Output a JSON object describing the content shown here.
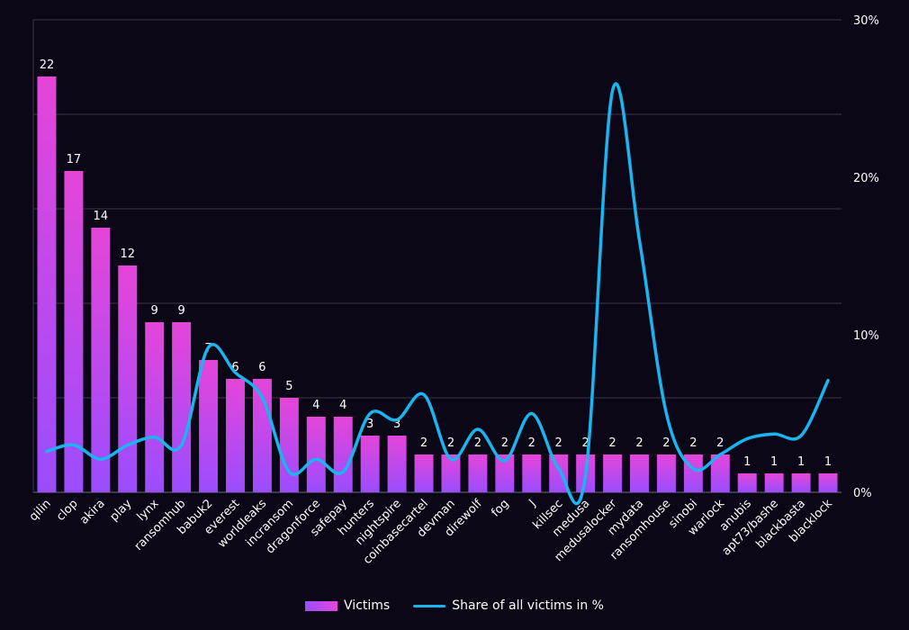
{
  "chart_data": {
    "type": "bar",
    "categories": [
      "qilin",
      "clop",
      "akira",
      "play",
      "lynx",
      "ransomhub",
      "babuk2",
      "everest",
      "worldleaks",
      "incransom",
      "dragonforce",
      "safepay",
      "hunters",
      "nightspire",
      "coinbasecartel",
      "devman",
      "direwolf",
      "fog",
      "J",
      "killsec",
      "medusa",
      "medusalocker",
      "mydata",
      "ransomhouse",
      "sinobi",
      "warlock",
      "anubis",
      "apt73/bashe",
      "blackbasta",
      "blacklock"
    ],
    "series": [
      {
        "name": "Victims",
        "type": "bar",
        "axis": "left",
        "values": [
          22,
          17,
          14,
          12,
          9,
          9,
          7,
          6,
          6,
          5,
          4,
          4,
          3,
          3,
          2,
          2,
          2,
          2,
          2,
          2,
          2,
          2,
          2,
          2,
          2,
          2,
          1,
          1,
          1,
          1
        ]
      },
      {
        "name": "Share of all victims in %",
        "type": "line",
        "axis": "right",
        "values": [
          2.6,
          3.0,
          2.1,
          3.0,
          3.5,
          3.0,
          9.2,
          7.6,
          6.0,
          1.3,
          2.1,
          1.3,
          5.0,
          4.6,
          6.2,
          2.1,
          4.0,
          2.0,
          5.0,
          1.5,
          1.1,
          25.5,
          16.0,
          5.0,
          1.5,
          2.4,
          3.4,
          3.7,
          3.6,
          7.1
        ]
      }
    ],
    "y_left_lim": [
      0,
      25
    ],
    "y_right_lim": [
      0,
      30
    ],
    "y_right_ticks": [
      "0%",
      "10%",
      "20%",
      "30%"
    ],
    "grid": true,
    "legend_position": "bottom-center",
    "colors": {
      "background": "#0c0717",
      "bar_gradient_bottom": "#9a4dff",
      "bar_gradient_top": "#e545d8",
      "line": "#1ab4ee",
      "grid": "#3b3544"
    }
  },
  "legend": {
    "victims_label": "Victims",
    "share_label": "Share of all victims in %"
  }
}
